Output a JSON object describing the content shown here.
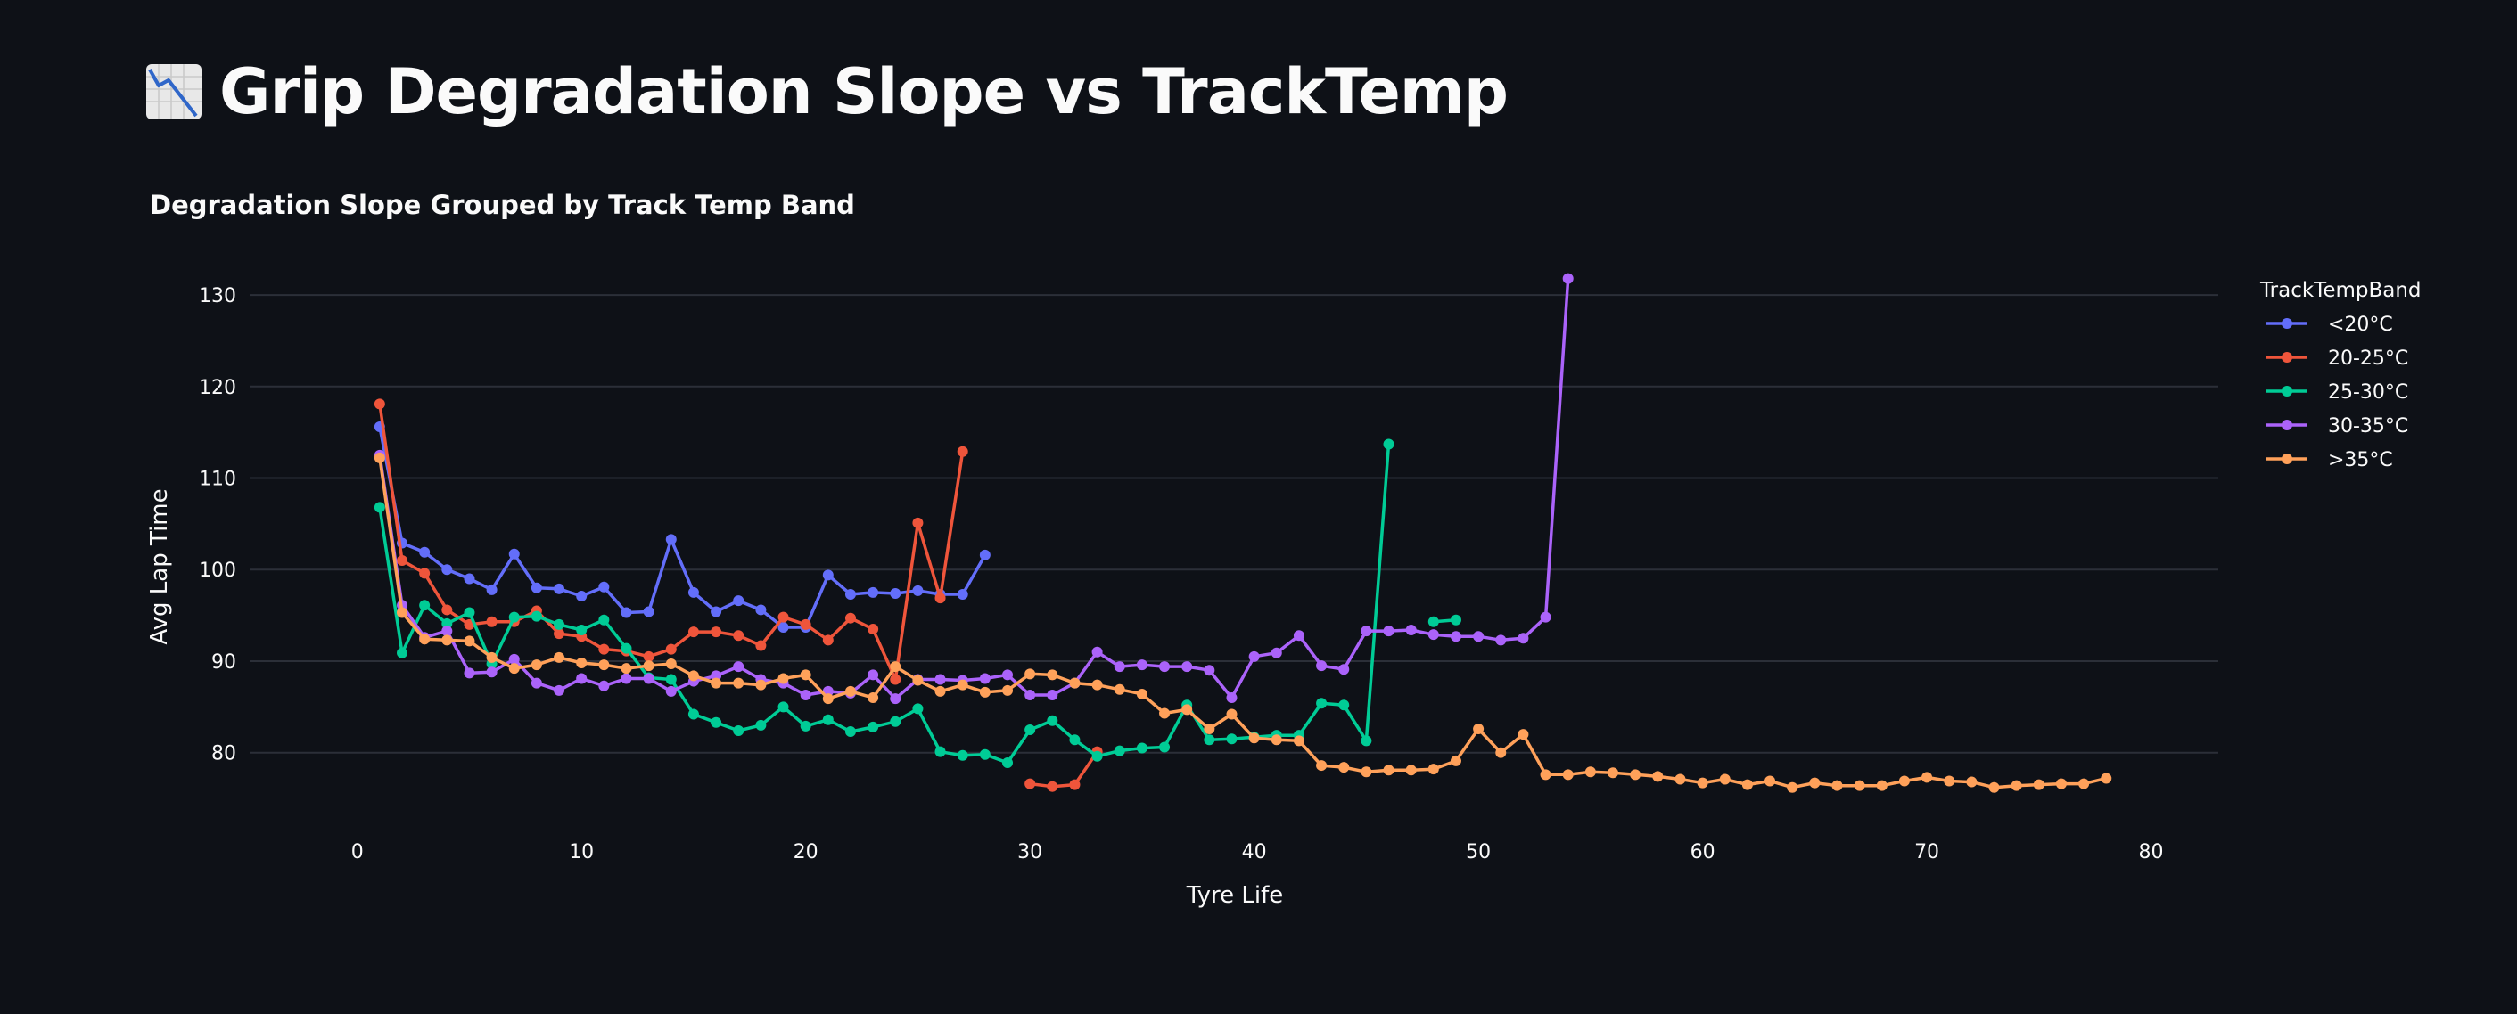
{
  "page": {
    "title": "Grip Degradation Slope vs TrackTemp",
    "title_icon": "chart-decreasing-icon"
  },
  "chart_data": {
    "type": "line",
    "title": "Degradation Slope Grouped by Track Temp Band",
    "xlabel": "Tyre Life",
    "ylabel": "Avg Lap Time",
    "xlim": [
      -4.8,
      83
    ],
    "ylim": [
      71.5,
      134
    ],
    "x_ticks": [
      0,
      10,
      20,
      30,
      40,
      50,
      60,
      70,
      80
    ],
    "y_ticks": [
      80,
      90,
      100,
      110,
      120,
      130
    ],
    "grid": "horizontal",
    "legend": {
      "title": "TrackTempBand",
      "placement": "right"
    },
    "series": [
      {
        "name": "<20°C",
        "color": "#636efa",
        "x": [
          1,
          2,
          3,
          4,
          5,
          6,
          7,
          8,
          9,
          10,
          11,
          12,
          13,
          14,
          15,
          16,
          17,
          18,
          19,
          20,
          21,
          22,
          23,
          24,
          25,
          26,
          27,
          28
        ],
        "y": [
          115.6,
          102.9,
          101.9,
          100.0,
          99.0,
          97.8,
          101.7,
          98.0,
          97.9,
          97.1,
          98.1,
          95.3,
          95.4,
          103.3,
          97.5,
          95.4,
          96.6,
          95.6,
          93.7,
          93.7,
          99.4,
          97.3,
          97.5,
          97.4,
          97.7,
          97.3,
          97.3,
          101.6
        ]
      },
      {
        "name": "20-25°C",
        "color": "#ef553b",
        "x": [
          1,
          2,
          3,
          4,
          5,
          6,
          7,
          8,
          9,
          10,
          11,
          12,
          13,
          14,
          15,
          16,
          17,
          18,
          19,
          20,
          21,
          22,
          23,
          24,
          25,
          26,
          27,
          28,
          null,
          30,
          31,
          32,
          33
        ],
        "y": [
          118.1,
          101.0,
          99.6,
          95.6,
          94.0,
          94.3,
          94.3,
          95.5,
          93.0,
          92.7,
          91.3,
          91.1,
          90.5,
          91.3,
          93.2,
          93.2,
          92.8,
          91.7,
          94.8,
          94.0,
          92.3,
          94.7,
          93.5,
          88.0,
          105.1,
          96.9,
          112.9,
          null,
          null,
          76.6,
          76.3,
          76.5,
          80.1
        ]
      },
      {
        "name": "25-30°C",
        "color": "#00cc96",
        "x": [
          1,
          2,
          3,
          4,
          5,
          6,
          7,
          8,
          9,
          10,
          11,
          12,
          13,
          14,
          15,
          16,
          17,
          18,
          19,
          20,
          21,
          22,
          23,
          24,
          25,
          26,
          27,
          28,
          29,
          30,
          31,
          32,
          33,
          34,
          35,
          36,
          37,
          38,
          39,
          40,
          41,
          42,
          43,
          44,
          45,
          46,
          null,
          48,
          49
        ],
        "y": [
          106.8,
          90.9,
          96.1,
          94.1,
          95.3,
          89.7,
          94.8,
          94.9,
          94.0,
          93.4,
          94.5,
          91.4,
          88.2,
          88.0,
          84.2,
          83.3,
          82.4,
          83.0,
          85.0,
          82.9,
          83.6,
          82.3,
          82.8,
          83.4,
          84.8,
          80.1,
          79.7,
          79.8,
          78.9,
          82.5,
          83.5,
          81.4,
          79.6,
          80.2,
          80.5,
          80.6,
          85.2,
          81.4,
          81.5,
          81.7,
          81.9,
          81.9,
          85.4,
          85.2,
          81.3,
          113.7,
          null,
          94.3,
          94.5
        ]
      },
      {
        "name": "30-35°C",
        "color": "#ab63fa",
        "x": [
          1,
          2,
          3,
          4,
          5,
          6,
          7,
          8,
          9,
          10,
          11,
          12,
          13,
          14,
          15,
          16,
          17,
          18,
          19,
          20,
          21,
          22,
          23,
          24,
          25,
          26,
          27,
          28,
          29,
          30,
          31,
          32,
          33,
          34,
          35,
          36,
          37,
          38,
          39,
          40,
          41,
          42,
          43,
          44,
          45,
          46,
          47,
          48,
          49,
          50,
          51,
          52,
          53,
          54
        ],
        "y": [
          112.5,
          96.1,
          92.6,
          93.3,
          88.7,
          88.8,
          90.2,
          87.6,
          86.8,
          88.1,
          87.3,
          88.1,
          88.1,
          86.7,
          87.8,
          88.4,
          89.4,
          88.0,
          87.6,
          86.3,
          86.7,
          86.5,
          88.5,
          85.9,
          88.0,
          88.0,
          87.9,
          88.1,
          88.5,
          86.3,
          86.3,
          87.6,
          91.0,
          89.4,
          89.6,
          89.4,
          89.4,
          89.0,
          86.0,
          90.5,
          90.9,
          92.8,
          89.5,
          89.1,
          93.3,
          93.3,
          93.4,
          92.9,
          92.7,
          92.7,
          92.3,
          92.5,
          94.8,
          131.8
        ]
      },
      {
        "name": ">35°C",
        "color": "#ffa15a",
        "x": [
          1,
          2,
          3,
          4,
          5,
          6,
          7,
          8,
          9,
          10,
          11,
          12,
          13,
          14,
          15,
          16,
          17,
          18,
          19,
          20,
          21,
          22,
          23,
          24,
          25,
          26,
          27,
          28,
          29,
          30,
          31,
          32,
          33,
          34,
          35,
          36,
          37,
          38,
          39,
          40,
          41,
          42,
          43,
          44,
          45,
          46,
          47,
          48,
          49,
          50,
          51,
          52,
          53,
          54,
          55,
          56,
          57,
          58,
          59,
          60,
          61,
          62,
          63,
          64,
          65,
          66,
          67,
          68,
          69,
          70,
          71,
          72,
          73,
          74,
          75,
          76,
          77,
          78
        ],
        "y": [
          112.2,
          95.3,
          92.4,
          92.3,
          92.2,
          90.4,
          89.2,
          89.6,
          90.4,
          89.8,
          89.6,
          89.2,
          89.5,
          89.7,
          88.4,
          87.6,
          87.6,
          87.4,
          88.1,
          88.5,
          85.9,
          86.7,
          86.0,
          89.4,
          87.9,
          86.7,
          87.4,
          86.6,
          86.8,
          88.6,
          88.5,
          87.6,
          87.4,
          86.9,
          86.4,
          84.3,
          84.7,
          82.6,
          84.2,
          81.6,
          81.4,
          81.3,
          78.6,
          78.4,
          77.9,
          78.1,
          78.1,
          78.2,
          79.1,
          82.6,
          80.0,
          82.0,
          77.6,
          77.6,
          77.9,
          77.8,
          77.6,
          77.4,
          77.1,
          76.7,
          77.1,
          76.5,
          76.9,
          76.2,
          76.7,
          76.4,
          76.4,
          76.4,
          76.9,
          77.3,
          76.9,
          76.8,
          76.2,
          76.4,
          76.5,
          76.6,
          76.6,
          77.2
        ]
      }
    ]
  }
}
